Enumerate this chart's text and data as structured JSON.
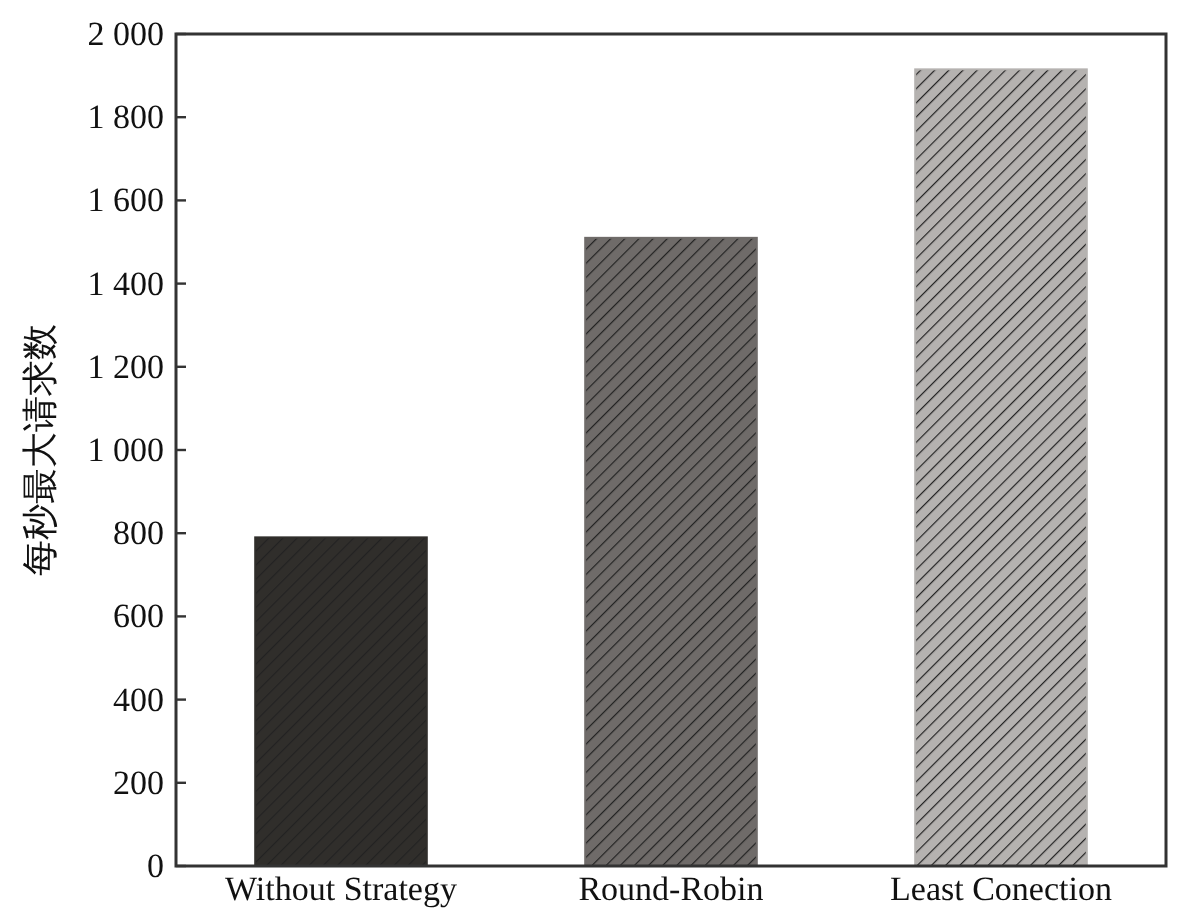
{
  "chart_data": {
    "type": "bar",
    "ylabel": "每秒最大请求数",
    "categories": [
      "Without Strategy",
      "Round-Robin",
      "Least Conection"
    ],
    "values": [
      790,
      1510,
      1915
    ],
    "colors": [
      "#302e2b",
      "#6f6b69",
      "#b5b2b0"
    ],
    "ylim": [
      0,
      2000
    ],
    "yticks": [
      0,
      200,
      400,
      600,
      800,
      {
        "value": 1000,
        "label": "1 000"
      },
      {
        "value": 1200,
        "label": "1 200"
      },
      {
        "value": 1400,
        "label": "1 400"
      },
      {
        "value": 1600,
        "label": "1 600"
      },
      {
        "value": 1800,
        "label": "1 800"
      },
      {
        "value": 2000,
        "label": "2 000"
      }
    ],
    "grid": false
  }
}
